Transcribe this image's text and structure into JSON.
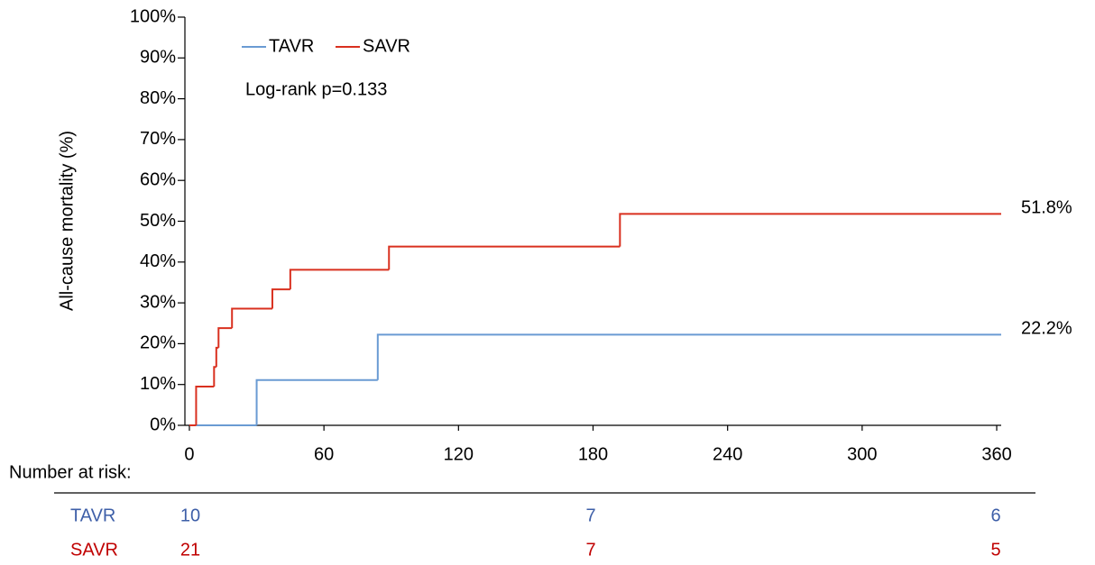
{
  "chart_data": {
    "type": "step",
    "y_label": "All-cause mortality (%)",
    "annotation": "Log-rank p=0.133",
    "legend": "top-left",
    "xlim": [
      -2,
      362
    ],
    "xticks": [
      0,
      60,
      120,
      180,
      240,
      300,
      360
    ],
    "ylim": [
      0,
      100
    ],
    "yticks": [
      {
        "value": 0,
        "label": "0%"
      },
      {
        "value": 10,
        "label": "10%"
      },
      {
        "value": 20,
        "label": "20%"
      },
      {
        "value": 30,
        "label": "30%"
      },
      {
        "value": 40,
        "label": "40%"
      },
      {
        "value": 50,
        "label": "50%"
      },
      {
        "value": 60,
        "label": "60%"
      },
      {
        "value": 70,
        "label": "70%"
      },
      {
        "value": 80,
        "label": "80%"
      },
      {
        "value": 90,
        "label": "90%"
      },
      {
        "value": 100,
        "label": "100%"
      }
    ],
    "series": [
      {
        "name": "TAVR",
        "color": "#6a9bd3",
        "x": [
          0,
          30,
          84,
          362
        ],
        "values": [
          0,
          11.1,
          22.2,
          22.2
        ],
        "end_label": "22.2%"
      },
      {
        "name": "SAVR",
        "color": "#d9301f",
        "x": [
          0,
          3,
          11,
          12,
          13,
          19,
          37,
          45,
          89,
          192,
          362
        ],
        "values": [
          0,
          9.5,
          14.3,
          19.0,
          23.8,
          28.6,
          33.3,
          38.1,
          43.8,
          51.8,
          51.8
        ],
        "end_label": "51.8%"
      }
    ],
    "risk_table": {
      "title": "Number at risk:",
      "rows": [
        {
          "name": "TAVR",
          "color": "#3e5fa8",
          "counts": [
            10,
            7,
            6
          ]
        },
        {
          "name": "SAVR",
          "color": "#c00000",
          "counts": [
            21,
            7,
            5
          ]
        }
      ]
    }
  }
}
